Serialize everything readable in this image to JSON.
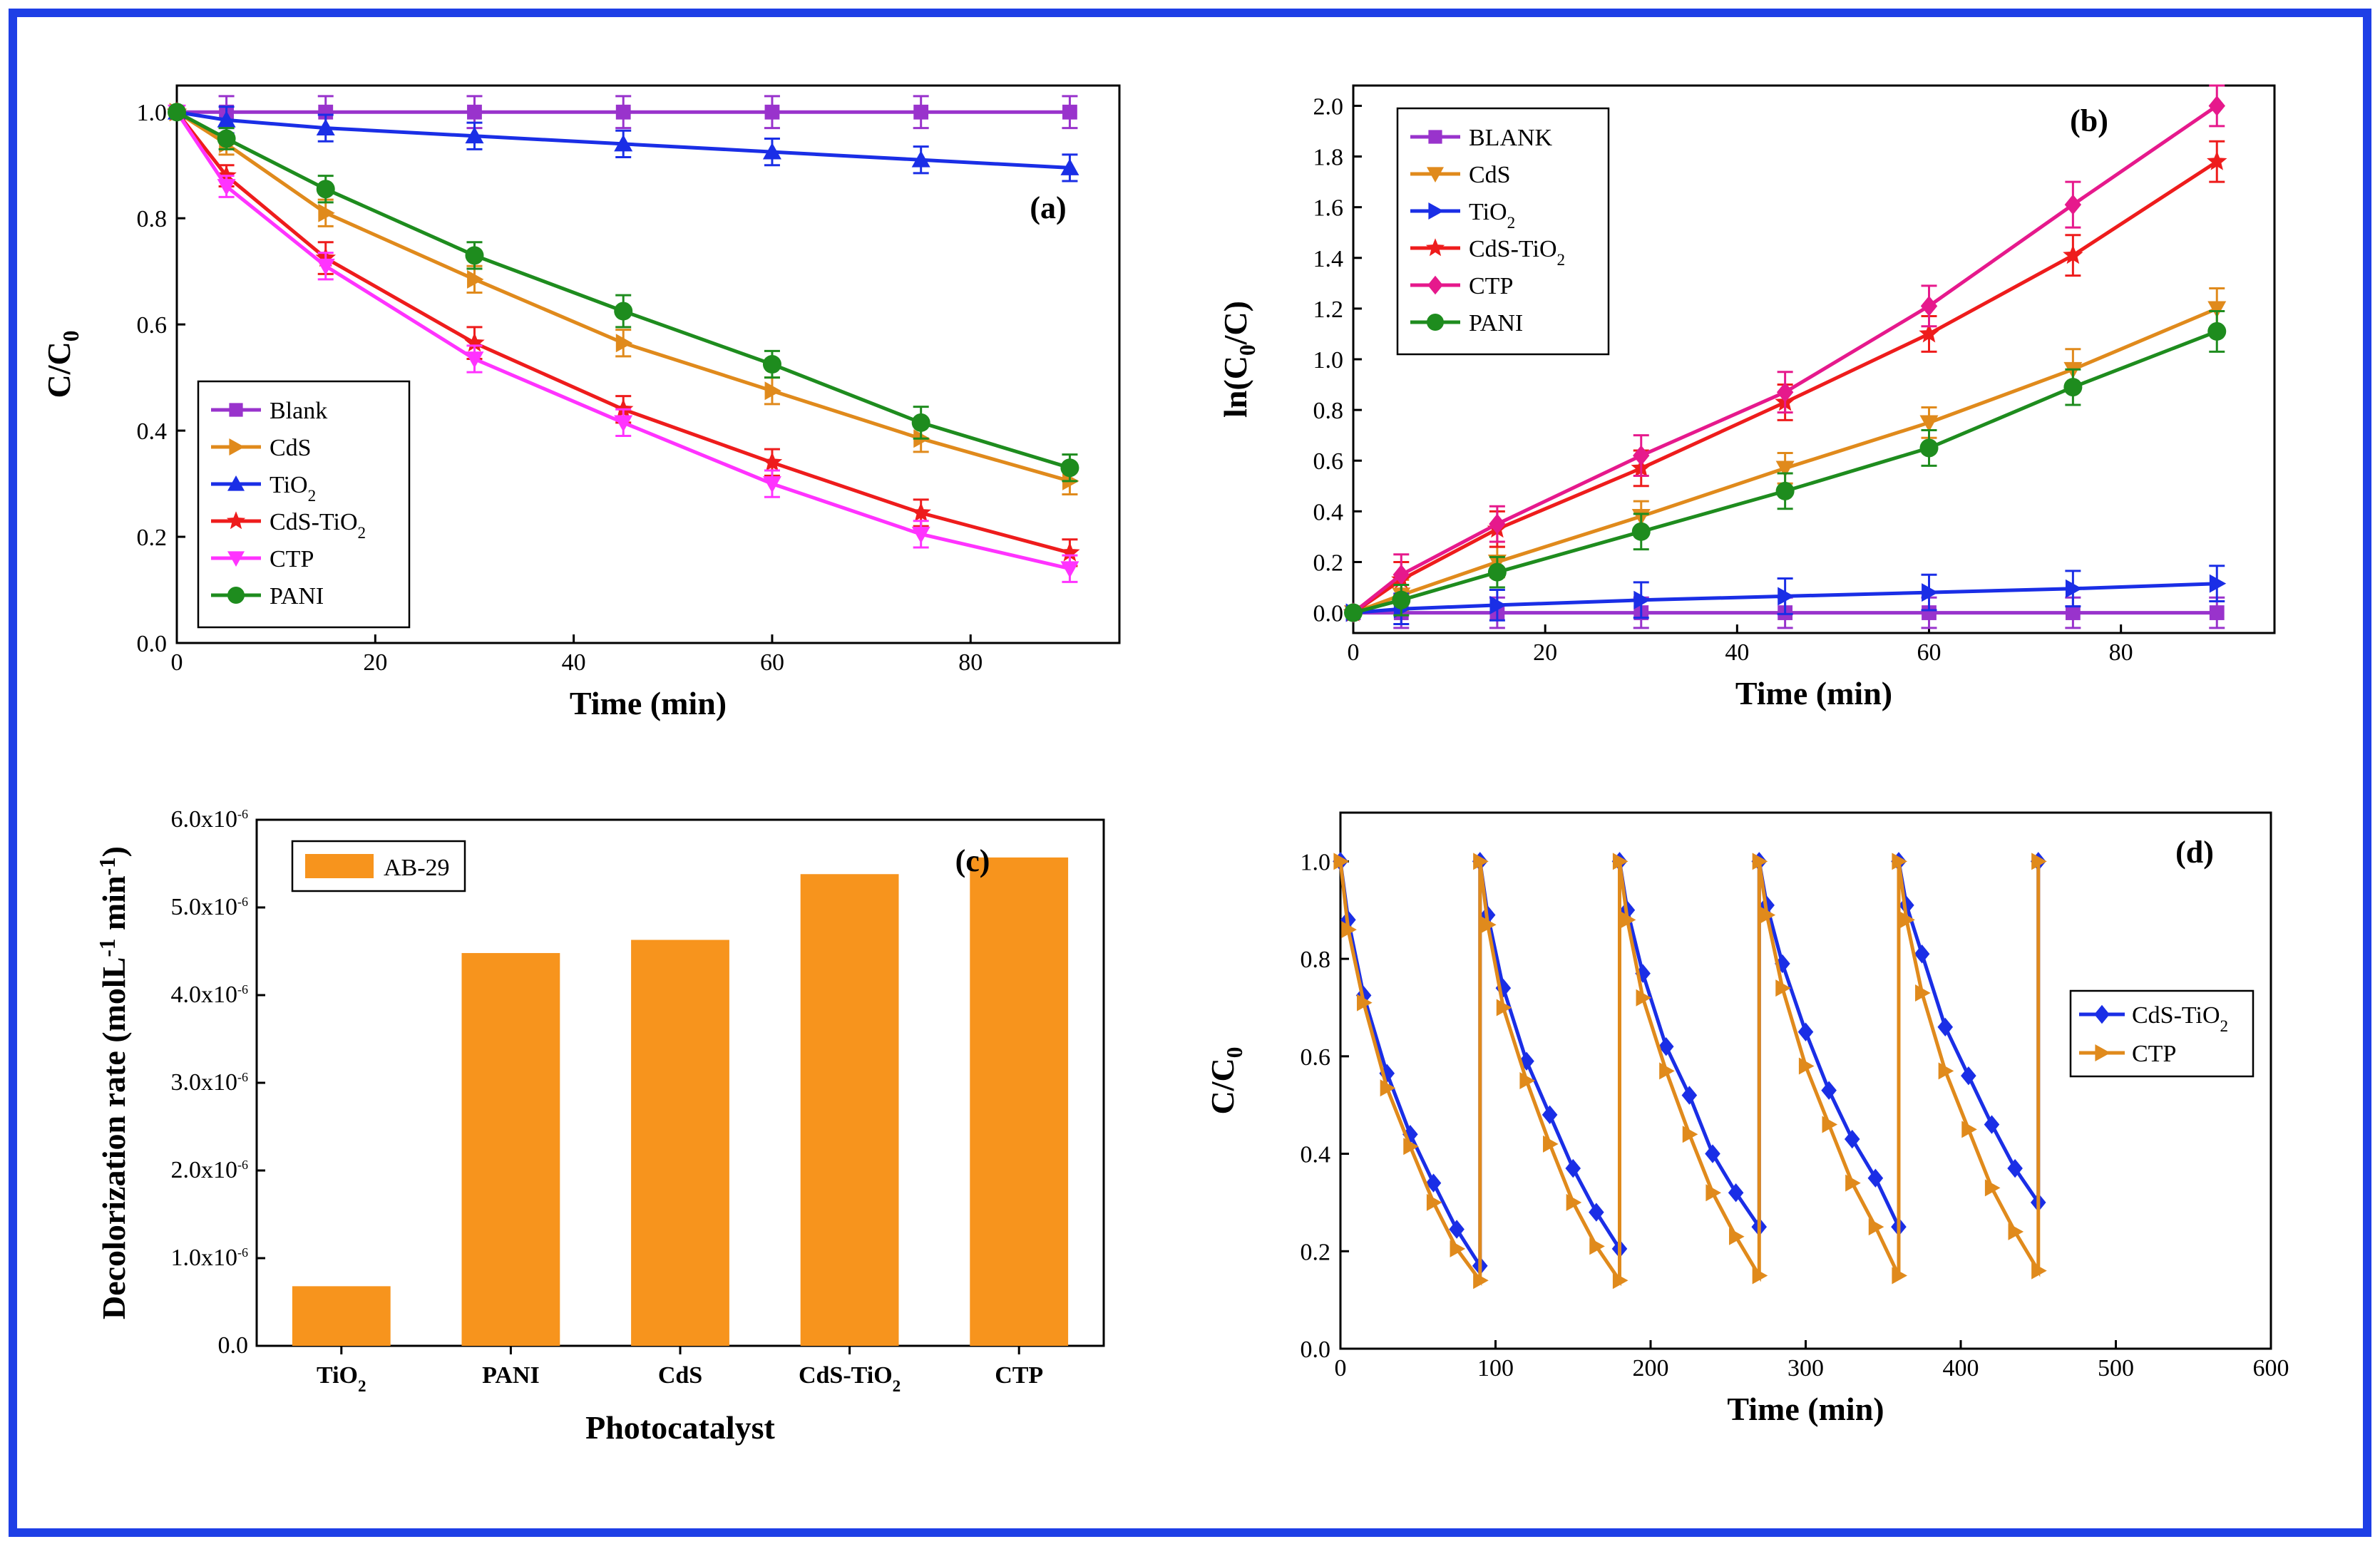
{
  "chart_data": [
    {
      "panel": "(a)",
      "type": "line",
      "xlabel": "Time (min)",
      "ylabel": "C/C0",
      "xlim": [
        0,
        95
      ],
      "ylim": [
        0,
        1.05
      ],
      "xticks": [
        0,
        20,
        40,
        60,
        80
      ],
      "yticks": [
        0.0,
        0.2,
        0.4,
        0.6,
        0.8,
        1.0
      ],
      "xtick_labels": [
        "0",
        "20",
        "40",
        "60",
        "80"
      ],
      "ytick_labels": [
        "0.0",
        "0.2",
        "0.4",
        "0.6",
        "0.8",
        "1.0"
      ],
      "legend_position": "bottom-left",
      "x": [
        0,
        5,
        15,
        30,
        45,
        60,
        75,
        90
      ],
      "series": [
        {
          "name": "Blank",
          "color": "#9933cc",
          "marker": "square",
          "values": [
            1.0,
            1.0,
            1.0,
            1.0,
            1.0,
            1.0,
            1.0,
            1.0
          ],
          "error": [
            0,
            0.03,
            0.03,
            0.03,
            0.03,
            0.03,
            0.03,
            0.03
          ]
        },
        {
          "name": "CdS",
          "color": "#e08a1c",
          "marker": "triangle-right",
          "values": [
            1.0,
            0.94,
            0.81,
            0.685,
            0.565,
            0.475,
            0.385,
            0.305
          ],
          "error": [
            0,
            0.02,
            0.025,
            0.025,
            0.025,
            0.025,
            0.025,
            0.025
          ]
        },
        {
          "name": "TiO2",
          "color": "#1a2ee6",
          "marker": "triangle-up",
          "values": [
            1.0,
            0.985,
            0.97,
            0.955,
            0.94,
            0.925,
            0.91,
            0.895
          ],
          "error": [
            0,
            0.025,
            0.025,
            0.025,
            0.025,
            0.025,
            0.025,
            0.025
          ]
        },
        {
          "name": "CdS-TiO2",
          "color": "#ee1c1c",
          "marker": "star",
          "values": [
            1.0,
            0.88,
            0.725,
            0.565,
            0.44,
            0.34,
            0.245,
            0.17
          ],
          "error": [
            0,
            0.02,
            0.03,
            0.03,
            0.025,
            0.025,
            0.025,
            0.025
          ]
        },
        {
          "name": "CTP",
          "color": "#ff33ff",
          "marker": "triangle-down",
          "values": [
            1.0,
            0.86,
            0.71,
            0.535,
            0.415,
            0.3,
            0.205,
            0.14
          ],
          "error": [
            0,
            0.02,
            0.025,
            0.025,
            0.025,
            0.025,
            0.025,
            0.025
          ]
        },
        {
          "name": "PANI",
          "color": "#1e8c1e",
          "marker": "circle",
          "values": [
            1.0,
            0.95,
            0.855,
            0.73,
            0.625,
            0.525,
            0.415,
            0.33
          ],
          "error": [
            0,
            0.02,
            0.025,
            0.025,
            0.03,
            0.025,
            0.03,
            0.025
          ]
        }
      ]
    },
    {
      "panel": "(b)",
      "type": "line",
      "xlabel": "Time (min)",
      "ylabel": "ln(C0/C)",
      "xlim": [
        0,
        96
      ],
      "ylim": [
        -0.08,
        2.08
      ],
      "xticks": [
        0,
        20,
        40,
        60,
        80
      ],
      "yticks": [
        0.0,
        0.2,
        0.4,
        0.6,
        0.8,
        1.0,
        1.2,
        1.4,
        1.6,
        1.8,
        2.0
      ],
      "xtick_labels": [
        "0",
        "20",
        "40",
        "60",
        "80"
      ],
      "ytick_labels": [
        "0.0",
        "0.2",
        "0.4",
        "0.6",
        "0.8",
        "1.0",
        "1.2",
        "1.4",
        "1.6",
        "1.8",
        "2.0"
      ],
      "legend_position": "top-left",
      "x": [
        0,
        5,
        15,
        30,
        45,
        60,
        75,
        90
      ],
      "series": [
        {
          "name": "BLANK",
          "color": "#9933cc",
          "marker": "square",
          "values": [
            0,
            0,
            0,
            0,
            0,
            0,
            0,
            0
          ],
          "error": [
            0,
            0.06,
            0.06,
            0.06,
            0.06,
            0.06,
            0.06,
            0.06
          ]
        },
        {
          "name": "CdS",
          "color": "#e08a1c",
          "marker": "triangle-down",
          "values": [
            0,
            0.07,
            0.2,
            0.38,
            0.57,
            0.75,
            0.96,
            1.2
          ],
          "error": [
            0,
            0.06,
            0.06,
            0.06,
            0.06,
            0.06,
            0.08,
            0.08
          ]
        },
        {
          "name": "TiO2",
          "color": "#1a2ee6",
          "marker": "triangle-right",
          "values": [
            0,
            0.015,
            0.03,
            0.05,
            0.065,
            0.08,
            0.095,
            0.115
          ],
          "error": [
            0,
            0.06,
            0.06,
            0.07,
            0.07,
            0.07,
            0.07,
            0.07
          ]
        },
        {
          "name": "CdS-TiO2",
          "color": "#ee1c1c",
          "marker": "star",
          "values": [
            0,
            0.13,
            0.33,
            0.57,
            0.83,
            1.1,
            1.41,
            1.78
          ],
          "error": [
            0,
            0.07,
            0.07,
            0.07,
            0.07,
            0.07,
            0.08,
            0.08
          ]
        },
        {
          "name": "CTP",
          "color": "#e6198c",
          "marker": "diamond",
          "values": [
            0,
            0.15,
            0.35,
            0.62,
            0.87,
            1.21,
            1.61,
            2.0
          ],
          "error": [
            0,
            0.08,
            0.07,
            0.08,
            0.08,
            0.08,
            0.09,
            0.08
          ]
        },
        {
          "name": "PANI",
          "color": "#1e8c1e",
          "marker": "circle",
          "values": [
            0,
            0.05,
            0.16,
            0.32,
            0.48,
            0.65,
            0.89,
            1.11
          ],
          "error": [
            0,
            0.06,
            0.06,
            0.07,
            0.07,
            0.07,
            0.07,
            0.08
          ]
        }
      ]
    },
    {
      "panel": "(c)",
      "type": "bar",
      "xlabel": "Photocatalyst",
      "ylabel": "Decolorization rate (molL-1 min-1)",
      "ylim": [
        0,
        6e-06
      ],
      "yticks": [
        0,
        1e-06,
        2e-06,
        3e-06,
        4e-06,
        5e-06,
        6e-06
      ],
      "ytick_labels": [
        "0.0",
        "1.0x10-6",
        "2.0x10-6",
        "3.0x10-6",
        "4.0x10-6",
        "5.0x10-6",
        "6.0x10-6"
      ],
      "categories": [
        "TiO2",
        "PANI",
        "CdS",
        "CdS-TiO2",
        "CTP"
      ],
      "legend_position": "top-left",
      "series": [
        {
          "name": "AB-29",
          "color": "#f7941d",
          "values": [
            6.8e-07,
            4.48e-06,
            4.63e-06,
            5.38e-06,
            5.57e-06
          ]
        }
      ]
    },
    {
      "panel": "(d)",
      "type": "line",
      "xlabel": "Time (min)",
      "ylabel": "C/C0",
      "xlim": [
        0,
        600
      ],
      "ylim": [
        0,
        1.1
      ],
      "xticks": [
        0,
        100,
        200,
        300,
        400,
        500,
        600
      ],
      "yticks": [
        0.0,
        0.2,
        0.4,
        0.6,
        0.8,
        1.0
      ],
      "xtick_labels": [
        "0",
        "100",
        "200",
        "300",
        "400",
        "500",
        "600"
      ],
      "ytick_labels": [
        "0.0",
        "0.2",
        "0.4",
        "0.6",
        "0.8",
        "1.0"
      ],
      "legend_position": "right",
      "cycle_times": [
        0,
        5,
        15,
        30,
        45,
        60,
        75,
        90
      ],
      "cycles": 5,
      "series": [
        {
          "name": "CdS-TiO2",
          "color": "#1a2ee6",
          "marker": "diamond",
          "cycle_values": [
            [
              1.0,
              0.88,
              0.725,
              0.565,
              0.44,
              0.34,
              0.245,
              0.17
            ],
            [
              1.0,
              0.89,
              0.74,
              0.59,
              0.48,
              0.37,
              0.28,
              0.205
            ],
            [
              1.0,
              0.9,
              0.77,
              0.62,
              0.52,
              0.4,
              0.32,
              0.25
            ],
            [
              1.0,
              0.91,
              0.79,
              0.65,
              0.53,
              0.43,
              0.35,
              0.25
            ],
            [
              1.0,
              0.91,
              0.81,
              0.66,
              0.56,
              0.46,
              0.37,
              0.3
            ]
          ]
        },
        {
          "name": "CTP",
          "color": "#e08a1c",
          "marker": "triangle-right",
          "cycle_values": [
            [
              1.0,
              0.86,
              0.71,
              0.535,
              0.415,
              0.3,
              0.205,
              0.14
            ],
            [
              1.0,
              0.87,
              0.7,
              0.55,
              0.42,
              0.3,
              0.21,
              0.14
            ],
            [
              1.0,
              0.88,
              0.72,
              0.57,
              0.44,
              0.32,
              0.23,
              0.15
            ],
            [
              1.0,
              0.89,
              0.74,
              0.58,
              0.46,
              0.34,
              0.25,
              0.15
            ],
            [
              1.0,
              0.88,
              0.73,
              0.57,
              0.45,
              0.33,
              0.24,
              0.16
            ]
          ]
        }
      ]
    }
  ],
  "colors": {
    "frame_border": "#1e3fe6"
  }
}
